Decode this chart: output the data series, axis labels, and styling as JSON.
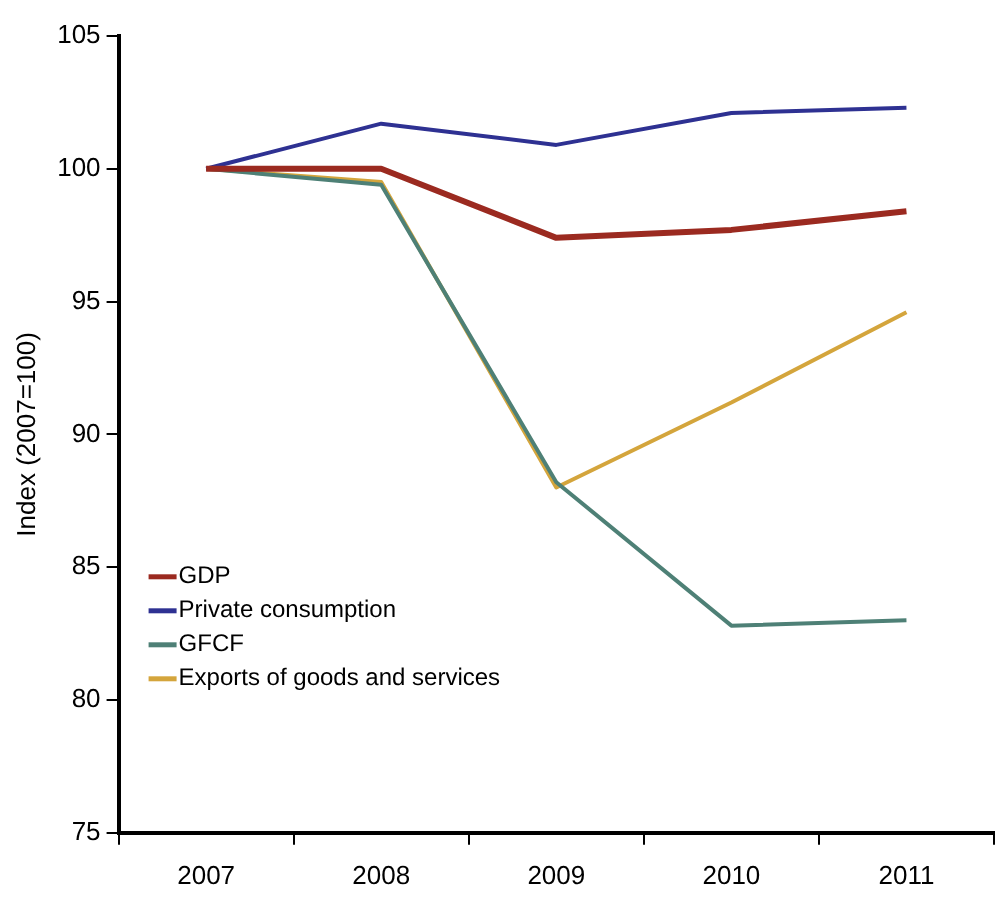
{
  "chart_data": {
    "type": "line",
    "ylabel": "Index (2007=100)",
    "categories": [
      "2007",
      "2008",
      "2009",
      "2010",
      "2011"
    ],
    "series": [
      {
        "name": "GDP",
        "color": "#9b2a20",
        "values": [
          100,
          100.0,
          97.4,
          97.7,
          98.4
        ]
      },
      {
        "name": "Private consumption",
        "color": "#2e3192",
        "values": [
          100,
          101.7,
          100.9,
          102.1,
          102.3
        ]
      },
      {
        "name": "GFCF",
        "color": "#4e8076",
        "values": [
          100,
          99.4,
          88.2,
          82.8,
          83.0
        ]
      },
      {
        "name": "Exports of goods and services",
        "color": "#d4a53c",
        "values": [
          100,
          99.5,
          88.0,
          91.2,
          94.6
        ]
      }
    ],
    "ylim": [
      75,
      105
    ],
    "yticks": [
      75,
      80,
      85,
      90,
      95,
      100,
      105
    ],
    "grid": false,
    "legend": "bottom left",
    "marker": "none",
    "line_style": "solid"
  }
}
